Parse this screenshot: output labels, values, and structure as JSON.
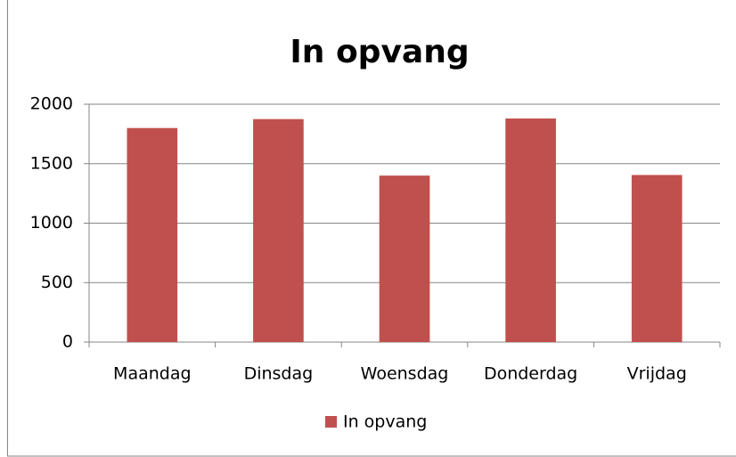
{
  "chart_data": {
    "type": "bar",
    "title": "In opvang",
    "categories": [
      "Maandag",
      "Dinsdag",
      "Woensdag",
      "Donderdag",
      "Vrijdag"
    ],
    "series": [
      {
        "name": "In opvang",
        "color": "#c0504d",
        "values": [
          1800,
          1875,
          1400,
          1880,
          1405
        ]
      }
    ],
    "ylim": [
      0,
      2000
    ],
    "yticks": [
      0,
      500,
      1000,
      1500,
      2000
    ],
    "grid": true,
    "legend": "bottom"
  }
}
